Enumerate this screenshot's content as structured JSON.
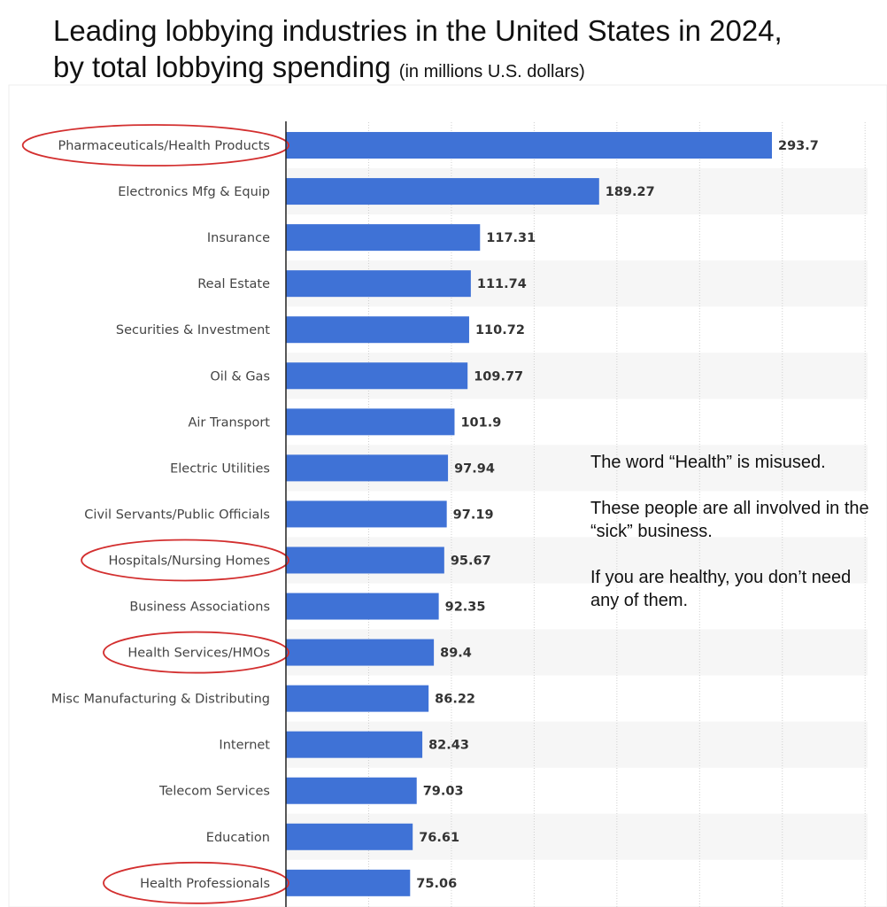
{
  "title_line1": "Leading lobbying industries in the United States in 2024,",
  "title_line2": "by total lobbying spending",
  "title_unit": "(in millions U.S. dollars)",
  "note": {
    "line1": "The word “Health” is misused.",
    "line2": "These people are all involved in the “sick” business.",
    "line3": "If you are healthy, you don’t need any of them."
  },
  "colors": {
    "bar": "#3f72d6",
    "highlight_ellipse": "#d32f2f",
    "axis": "#222222"
  },
  "chart_data": {
    "type": "bar",
    "orientation": "horizontal",
    "categories": [
      "Pharmaceuticals/Health Products",
      "Electronics Mfg & Equip",
      "Insurance",
      "Real Estate",
      "Securities & Investment",
      "Oil & Gas",
      "Air Transport",
      "Electric Utilities",
      "Civil Servants/Public Officials",
      "Hospitals/Nursing Homes",
      "Business Associations",
      "Health Services/HMOs",
      "Misc Manufacturing & Distributing",
      "Internet",
      "Telecom Services",
      "Education",
      "Health Professionals"
    ],
    "values": [
      293.7,
      189.27,
      117.31,
      111.74,
      110.72,
      109.77,
      101.9,
      97.94,
      97.19,
      95.67,
      92.35,
      89.4,
      86.22,
      82.43,
      79.03,
      76.61,
      75.06
    ],
    "value_labels": [
      "293.7",
      "189.27",
      "117.31",
      "111.74",
      "110.72",
      "109.77",
      "101.9",
      "97.94",
      "97.19",
      "95.67",
      "92.35",
      "89.4",
      "86.22",
      "82.43",
      "79.03",
      "76.61",
      "75.06"
    ],
    "highlighted": [
      "Pharmaceuticals/Health Products",
      "Hospitals/Nursing Homes",
      "Health Services/HMOs",
      "Health Professionals"
    ],
    "xlim": [
      0,
      350
    ],
    "grid": true,
    "legend": "none"
  }
}
